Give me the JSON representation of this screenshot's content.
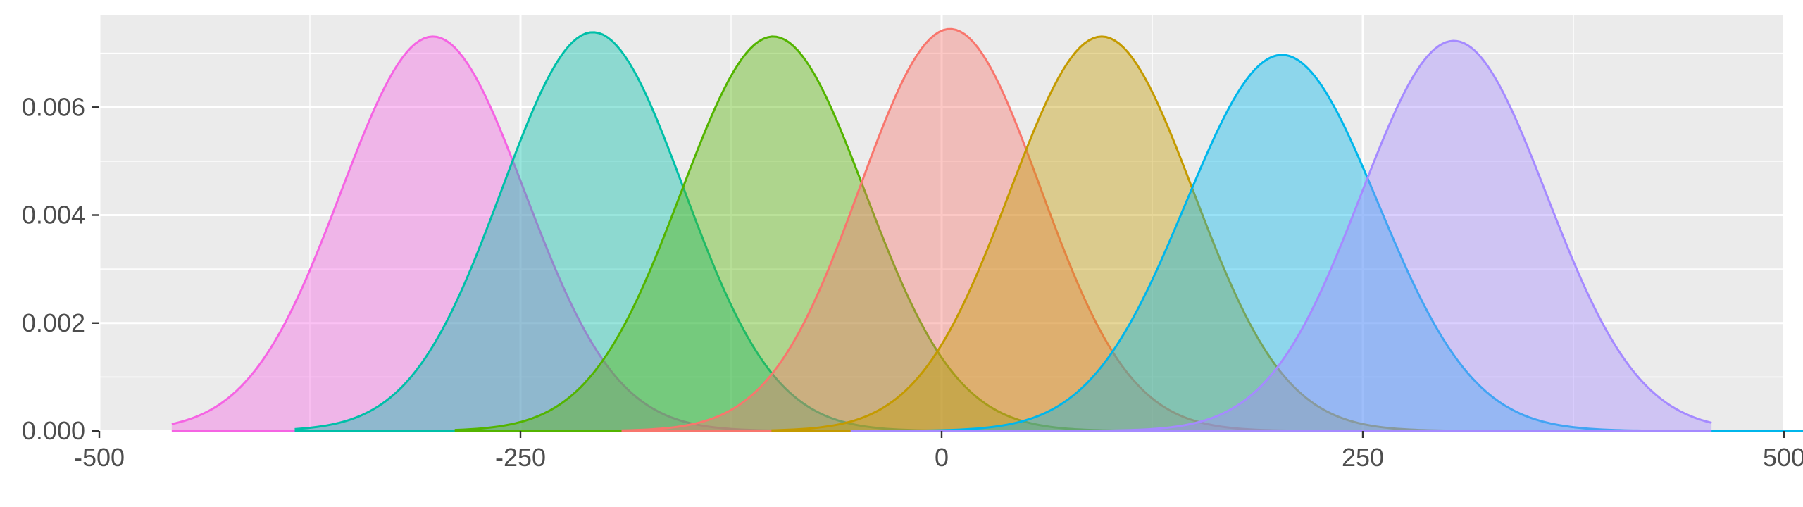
{
  "chart_data": {
    "type": "area",
    "title": "",
    "xlabel": "",
    "ylabel": "",
    "xlim": [
      -500,
      500
    ],
    "ylim": [
      0,
      0.0077
    ],
    "x_ticks": [
      -500,
      -250,
      0,
      250,
      500
    ],
    "x_tick_labels": [
      "-500",
      "-250",
      "0",
      "250",
      "500"
    ],
    "y_ticks": [
      0.0,
      0.002,
      0.004,
      0.006
    ],
    "y_tick_labels": [
      "0.000",
      "0.002",
      "0.004",
      "0.006"
    ],
    "grid": true,
    "legend": "none",
    "panel_background": "#ebebeb",
    "grid_color": "#ffffff",
    "fill_opacity": 0.4,
    "series": [
      {
        "mean": -302,
        "sd": 54.5,
        "peak": 0.00731,
        "x_range": [
          -457,
          162
        ],
        "color": "#f564e3"
      },
      {
        "mean": -207,
        "sd": 54.0,
        "peak": 0.00739,
        "x_range": [
          -384,
          235
        ],
        "color": "#00bfa8"
      },
      {
        "mean": -100,
        "sd": 54.5,
        "peak": 0.00731,
        "x_range": [
          -289,
          330
        ],
        "color": "#53b400"
      },
      {
        "mean": 5,
        "sd": 53.5,
        "peak": 0.00745,
        "x_range": [
          -190,
          429
        ],
        "color": "#f8766d"
      },
      {
        "mean": 95,
        "sd": 54.5,
        "peak": 0.00731,
        "x_range": [
          -101,
          518
        ],
        "color": "#c49a00"
      },
      {
        "mean": 202,
        "sd": 57.0,
        "peak": 0.00697,
        "x_range": [
          -10,
          609
        ],
        "color": "#00b6eb"
      },
      {
        "mean": 304,
        "sd": 55.0,
        "peak": 0.00723,
        "x_range": [
          -54,
          457
        ],
        "color": "#a58aff"
      }
    ]
  }
}
